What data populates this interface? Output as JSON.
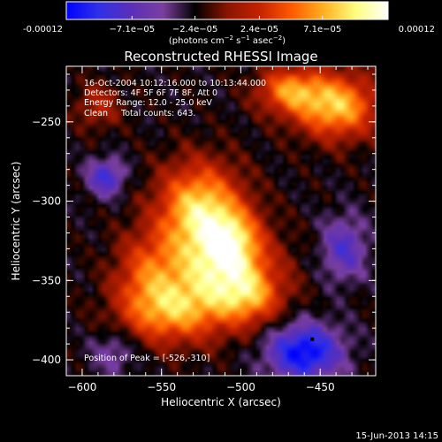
{
  "colorbar": {
    "tick_labels": [
      "-0.00012",
      "−7.1e−05",
      "−2.4e−05",
      "2.4e−05",
      "7.1e−05",
      "0.00012"
    ],
    "range": [
      -0.00012,
      0.00012
    ],
    "unit_prefix": "(photons cm",
    "unit_exp1": "−2",
    "unit_mid": " s",
    "unit_exp2": "−1",
    "unit_mid2": " asec",
    "unit_exp3": "−2",
    "unit_suffix": ")",
    "colors": [
      "#0000ff",
      "#3030e8",
      "#5a2fb8",
      "#7a3f9e",
      "#000000",
      "#8a1500",
      "#c42200",
      "#ff5a00",
      "#ffb020",
      "#ffff80",
      "#ffffff"
    ]
  },
  "chart_data": {
    "type": "heatmap",
    "title": "Reconstructed RHESSI Image",
    "xlabel": "Heliocentric X (arcsec)",
    "ylabel": "Heliocentric Y (arcsec)",
    "xlim": [
      -610,
      -415
    ],
    "ylim": [
      -410,
      -215
    ],
    "x_ticks": [
      -600,
      -550,
      -500,
      -450
    ],
    "y_ticks": [
      -400,
      -350,
      -300,
      -250
    ],
    "peak": [
      -526,
      -310
    ],
    "blobs": [
      {
        "x": -526,
        "y": -305,
        "sx": 18,
        "sy": 20,
        "a": 1.0
      },
      {
        "x": -515,
        "y": -345,
        "sx": 25,
        "sy": 20,
        "a": 0.85
      },
      {
        "x": -545,
        "y": -370,
        "sx": 22,
        "sy": 14,
        "a": 0.7
      },
      {
        "x": -505,
        "y": -325,
        "sx": 12,
        "sy": 14,
        "a": 0.6
      },
      {
        "x": -495,
        "y": -360,
        "sx": 14,
        "sy": 12,
        "a": 0.55
      },
      {
        "x": -440,
        "y": -240,
        "sx": 18,
        "sy": 14,
        "a": 0.95
      },
      {
        "x": -470,
        "y": -230,
        "sx": 14,
        "sy": 10,
        "a": 0.7
      },
      {
        "x": -560,
        "y": -345,
        "sx": 14,
        "sy": 18,
        "a": 0.45
      },
      {
        "x": -590,
        "y": -240,
        "sx": 10,
        "sy": 10,
        "a": 0.35
      },
      {
        "x": -585,
        "y": -285,
        "sx": 8,
        "sy": 8,
        "a": -0.6
      },
      {
        "x": -460,
        "y": -395,
        "sx": 16,
        "sy": 12,
        "a": -0.9
      },
      {
        "x": -435,
        "y": -330,
        "sx": 10,
        "sy": 14,
        "a": -0.5
      },
      {
        "x": -580,
        "y": -395,
        "sx": 10,
        "sy": 10,
        "a": -0.3
      }
    ],
    "annotations": [
      "16-Oct-2004 10:12:16.000 to 10:13:44.000",
      "Detectors: 4F 5F 6F 7F 8F, Att 0",
      "Energy Range: 12.0 - 25.0 keV",
      "Clean     Total counts: 643.",
      "Position of Peak = [-526,-310]"
    ],
    "footer": "15-Jun-2013 14:15"
  }
}
